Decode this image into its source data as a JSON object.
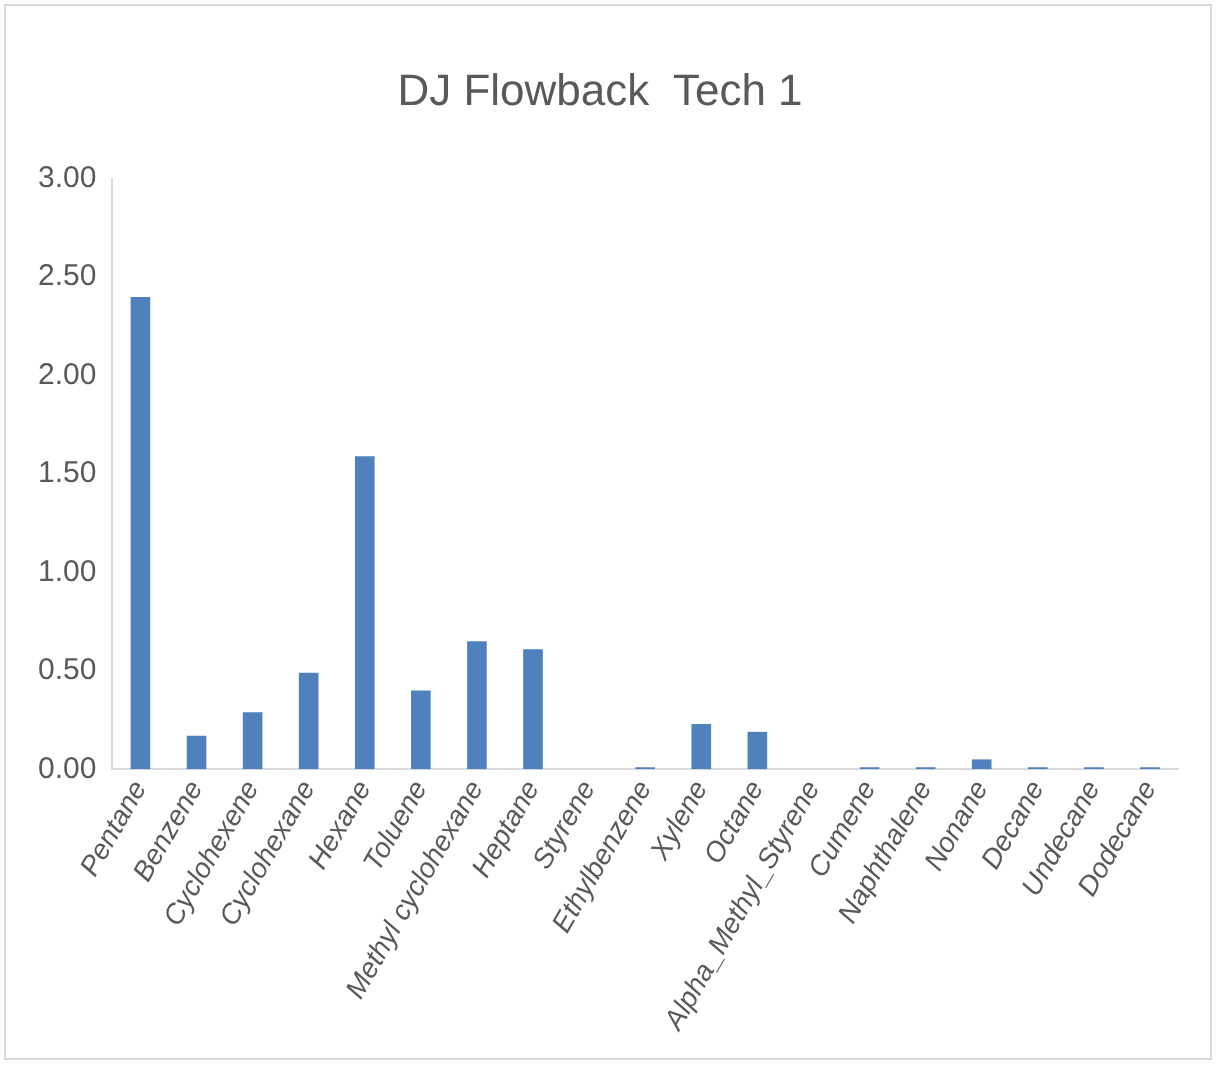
{
  "chart_data": {
    "type": "bar",
    "title": "DJ Flowback  Tech 1",
    "categories": [
      "Pentane",
      "Benzene",
      "Cyclohexene",
      "Cyclohexane",
      "Hexane",
      "Toluene",
      "Methyl cyclohexane",
      "Heptane",
      "Styrene",
      "Ethylbenzene",
      "Xylene",
      "Octane",
      "Alpha_Methyl_Styrene",
      "Cumene",
      "Naphthalene",
      "Nonane",
      "Decane",
      "Undecane",
      "Dodecane"
    ],
    "values": [
      2.4,
      0.17,
      0.29,
      0.49,
      1.59,
      0.4,
      0.65,
      0.61,
      0,
      0.01,
      0.23,
      0.19,
      0,
      0.01,
      0.01,
      0.05,
      0.01,
      0.01,
      0.01
    ],
    "color": "#4f81bd",
    "ylim": [
      0,
      3
    ],
    "yticks": [
      {
        "value": 0,
        "label": "0.00"
      },
      {
        "value": 0.5,
        "label": "0.50"
      },
      {
        "value": 1,
        "label": "1.00"
      },
      {
        "value": 1.5,
        "label": "1.50"
      },
      {
        "value": 2,
        "label": "2.00"
      },
      {
        "value": 2.5,
        "label": "2.50"
      },
      {
        "value": 3,
        "label": "3.00"
      }
    ],
    "grid": false,
    "legend": false
  }
}
